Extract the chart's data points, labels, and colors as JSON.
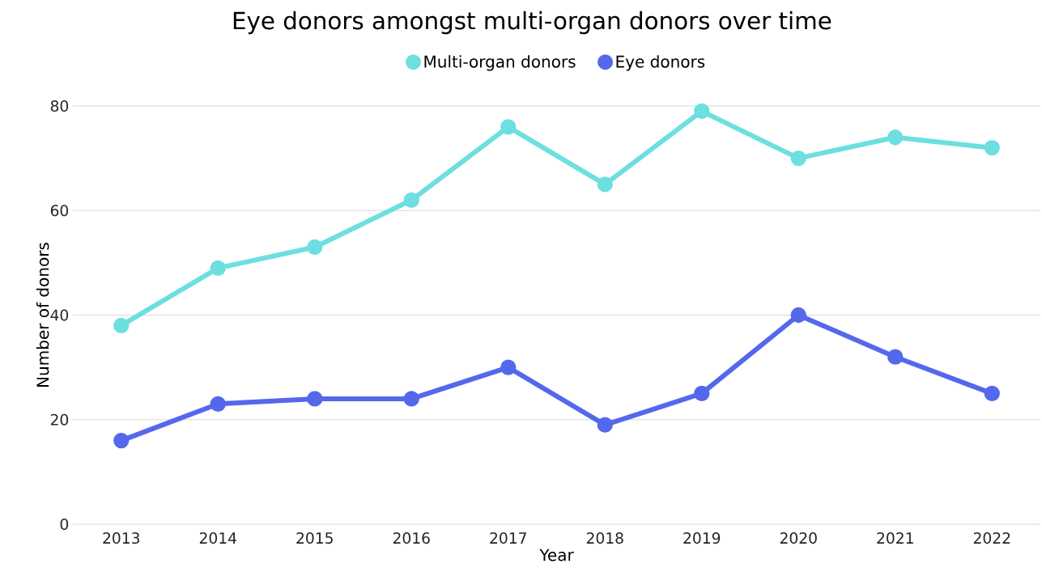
{
  "chart_data": {
    "type": "line",
    "title": "Eye donors amongst multi-organ donors over time",
    "xlabel": "Year",
    "ylabel": "Number of donors",
    "categories": [
      "2013",
      "2014",
      "2015",
      "2016",
      "2017",
      "2018",
      "2019",
      "2020",
      "2021",
      "2022"
    ],
    "series": [
      {
        "name": "Multi-organ donors",
        "color": "#6ddfe0",
        "values": [
          38,
          49,
          53,
          62,
          76,
          65,
          79,
          70,
          74,
          72
        ]
      },
      {
        "name": "Eye donors",
        "color": "#5468ec",
        "values": [
          16,
          23,
          24,
          24,
          30,
          19,
          25,
          40,
          32,
          25
        ]
      }
    ],
    "ylim": [
      0,
      80
    ],
    "yticks": [
      0,
      20,
      40,
      60,
      80
    ],
    "grid": "y",
    "legend": "top",
    "marker": "circle",
    "line_style": "solid"
  }
}
